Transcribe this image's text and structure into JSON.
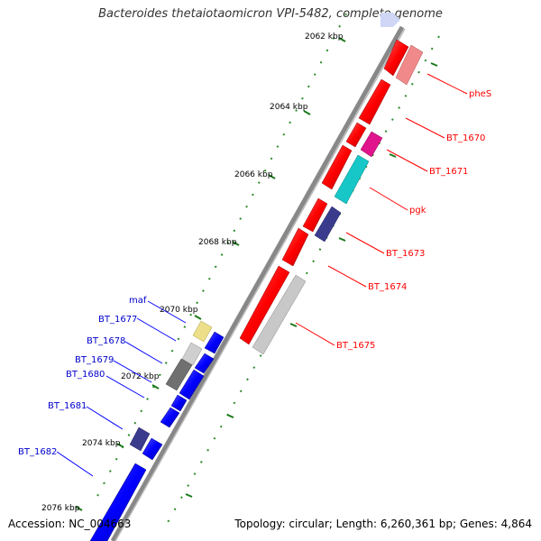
{
  "title": "Bacteroides thetaiotaomicron VPI-5482, complete genome",
  "accession": "Accession: NC_004663",
  "topology": "Topology: circular; Length: 6,260,361 bp; Genes: 4,864",
  "colors": {
    "forward": "#ff0000",
    "reverse": "#0000ff",
    "backbone": "#777777",
    "tick": "#228B22"
  },
  "tick_labels": [
    "2062 kbp",
    "2064 kbp",
    "2066 kbp",
    "2068 kbp",
    "2070 kbp",
    "2072 kbp",
    "2074 kbp",
    "2076 kbp"
  ],
  "forward_labels": [
    "pheS",
    "BT_1670",
    "BT_1671",
    "pgk",
    "BT_1673",
    "BT_1674",
    "BT_1675"
  ],
  "reverse_labels": [
    "maf",
    "BT_1677",
    "BT_1678",
    "BT_1679",
    "BT_1680",
    "BT_1681",
    "BT_1682"
  ]
}
